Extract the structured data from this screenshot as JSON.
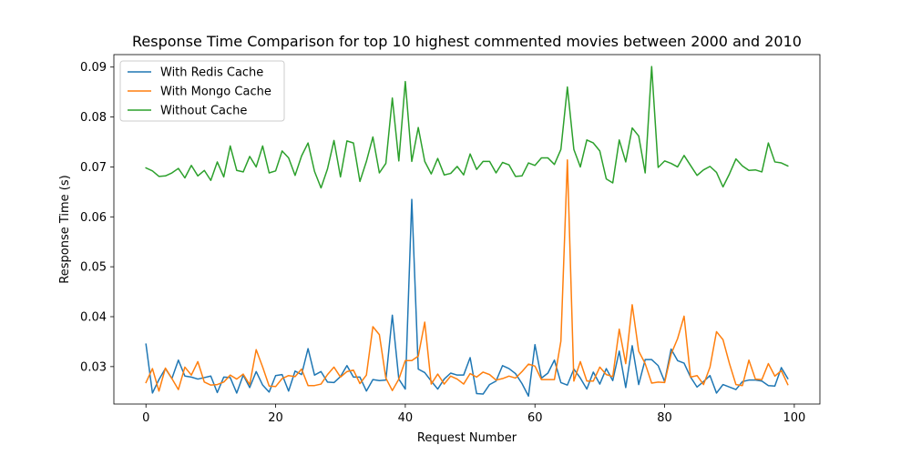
{
  "chart_data": {
    "type": "line",
    "title": "Response Time Comparison for top 10 highest commented movies between 2000 and 2010",
    "xlabel": "Request Number",
    "ylabel": "Response Time (s)",
    "xlim": [
      -4.95,
      103.95
    ],
    "ylim": [
      0.0225,
      0.0925
    ],
    "x_ticks": [
      0,
      20,
      40,
      60,
      80,
      100
    ],
    "y_ticks": [
      0.03,
      0.04,
      0.05,
      0.06,
      0.07,
      0.08,
      0.09
    ],
    "y_tick_labels": [
      "0.03",
      "0.04",
      "0.05",
      "0.06",
      "0.07",
      "0.08",
      "0.09"
    ],
    "grid": false,
    "legend_position": "upper-left",
    "x": [
      0,
      1,
      2,
      3,
      4,
      5,
      6,
      7,
      8,
      9,
      10,
      11,
      12,
      13,
      14,
      15,
      16,
      17,
      18,
      19,
      20,
      21,
      22,
      23,
      24,
      25,
      26,
      27,
      28,
      29,
      30,
      31,
      32,
      33,
      34,
      35,
      36,
      37,
      38,
      39,
      40,
      41,
      42,
      43,
      44,
      45,
      46,
      47,
      48,
      49,
      50,
      51,
      52,
      53,
      54,
      55,
      56,
      57,
      58,
      59,
      60,
      61,
      62,
      63,
      64,
      65,
      66,
      67,
      68,
      69,
      70,
      71,
      72,
      73,
      74,
      75,
      76,
      77,
      78,
      79,
      80,
      81,
      82,
      83,
      84,
      85,
      86,
      87,
      88,
      89,
      90,
      91,
      92,
      93,
      94,
      95,
      96,
      97,
      98,
      99
    ],
    "series": [
      {
        "name": "With Redis Cache",
        "color": "#1f77b4",
        "values": [
          0.0345,
          0.0247,
          0.0274,
          0.0296,
          0.0276,
          0.0313,
          0.0281,
          0.0279,
          0.0275,
          0.0278,
          0.0281,
          0.0248,
          0.0279,
          0.0278,
          0.0247,
          0.0283,
          0.0258,
          0.029,
          0.0263,
          0.0249,
          0.0282,
          0.0284,
          0.0251,
          0.0291,
          0.0284,
          0.0336,
          0.0283,
          0.029,
          0.0269,
          0.0268,
          0.028,
          0.0302,
          0.0279,
          0.0279,
          0.0251,
          0.0274,
          0.0272,
          0.0273,
          0.0403,
          0.0275,
          0.0255,
          0.0635,
          0.0295,
          0.0288,
          0.0271,
          0.0255,
          0.0275,
          0.0287,
          0.0283,
          0.0283,
          0.0318,
          0.0246,
          0.0245,
          0.0264,
          0.0271,
          0.0302,
          0.0296,
          0.0286,
          0.0266,
          0.0241,
          0.0344,
          0.0277,
          0.0287,
          0.0313,
          0.0268,
          0.0263,
          0.0295,
          0.0277,
          0.0255,
          0.0289,
          0.0265,
          0.0296,
          0.0272,
          0.0331,
          0.0258,
          0.0342,
          0.0264,
          0.0314,
          0.0314,
          0.0302,
          0.027,
          0.0335,
          0.0312,
          0.0307,
          0.0279,
          0.0259,
          0.027,
          0.0282,
          0.0247,
          0.0264,
          0.0259,
          0.0254,
          0.027,
          0.0273,
          0.0273,
          0.0271,
          0.0262,
          0.0261,
          0.0298,
          0.0276
        ]
      },
      {
        "name": "With Mongo Cache",
        "color": "#ff7f0e",
        "values": [
          0.0268,
          0.0296,
          0.0251,
          0.0297,
          0.0276,
          0.0254,
          0.0299,
          0.0283,
          0.031,
          0.0269,
          0.0263,
          0.0264,
          0.0269,
          0.0283,
          0.0275,
          0.0285,
          0.0264,
          0.0334,
          0.0299,
          0.0261,
          0.026,
          0.0276,
          0.0282,
          0.028,
          0.0295,
          0.0262,
          0.0262,
          0.0265,
          0.0284,
          0.0299,
          0.0279,
          0.029,
          0.0293,
          0.0266,
          0.0283,
          0.038,
          0.0364,
          0.0277,
          0.0252,
          0.0275,
          0.0312,
          0.0312,
          0.0321,
          0.0389,
          0.0265,
          0.0285,
          0.0265,
          0.0281,
          0.0275,
          0.0265,
          0.0286,
          0.0279,
          0.0289,
          0.0284,
          0.0273,
          0.0276,
          0.0281,
          0.0277,
          0.029,
          0.0305,
          0.0301,
          0.0274,
          0.0274,
          0.0274,
          0.0351,
          0.0714,
          0.0271,
          0.031,
          0.0271,
          0.0271,
          0.0299,
          0.0284,
          0.028,
          0.0375,
          0.0306,
          0.0424,
          0.0331,
          0.0306,
          0.0267,
          0.0269,
          0.0268,
          0.0325,
          0.0356,
          0.0401,
          0.0279,
          0.0282,
          0.0264,
          0.0299,
          0.037,
          0.0354,
          0.0306,
          0.0264,
          0.0262,
          0.0313,
          0.0275,
          0.0274,
          0.0306,
          0.0281,
          0.0292,
          0.0264
        ]
      },
      {
        "name": "Without Cache",
        "color": "#2ca02c",
        "values": [
          0.0698,
          0.0692,
          0.0681,
          0.0682,
          0.0688,
          0.0697,
          0.0678,
          0.0703,
          0.0682,
          0.0693,
          0.0673,
          0.071,
          0.068,
          0.0742,
          0.0693,
          0.069,
          0.0721,
          0.07,
          0.0742,
          0.0688,
          0.0692,
          0.0732,
          0.0718,
          0.0683,
          0.0722,
          0.0748,
          0.0691,
          0.0658,
          0.0696,
          0.0753,
          0.068,
          0.0752,
          0.0748,
          0.0671,
          0.0711,
          0.076,
          0.0688,
          0.0707,
          0.0838,
          0.0712,
          0.0871,
          0.0711,
          0.0779,
          0.0711,
          0.0686,
          0.0717,
          0.0684,
          0.0687,
          0.0701,
          0.0684,
          0.0726,
          0.0695,
          0.0711,
          0.0711,
          0.0688,
          0.0709,
          0.0704,
          0.0681,
          0.0682,
          0.0708,
          0.0703,
          0.0718,
          0.0718,
          0.0705,
          0.0735,
          0.086,
          0.0735,
          0.07,
          0.0754,
          0.0748,
          0.0732,
          0.0676,
          0.0668,
          0.0754,
          0.071,
          0.0778,
          0.0762,
          0.0688,
          0.0901,
          0.0699,
          0.0712,
          0.0707,
          0.07,
          0.0723,
          0.0703,
          0.0683,
          0.0694,
          0.0701,
          0.0689,
          0.066,
          0.0686,
          0.0716,
          0.0702,
          0.0693,
          0.0694,
          0.069,
          0.0748,
          0.071,
          0.0708,
          0.0702
        ]
      }
    ]
  }
}
